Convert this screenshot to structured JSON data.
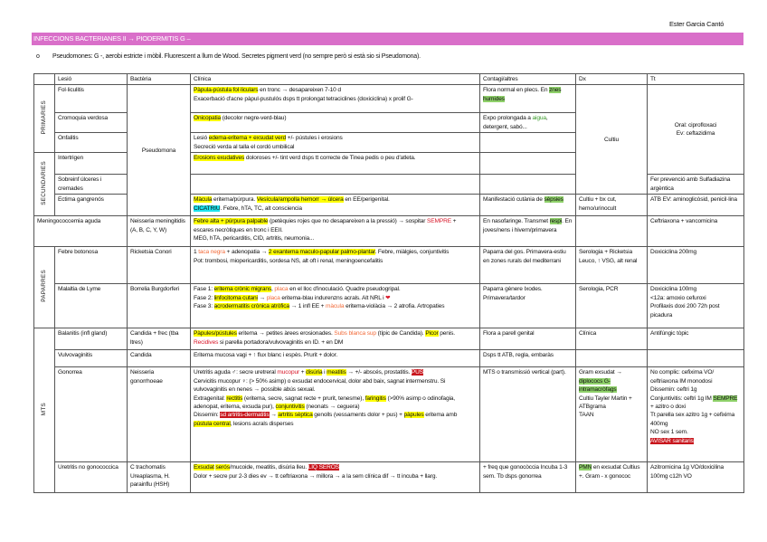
{
  "author": "Ester Garcia Cantó",
  "title": "INFECCIONS BACTERIANES II → PIODERMITIS G –",
  "bullet": {
    "marker": "o",
    "text": "Pseudomones: G -, aerobi estricte i mòbil. Fluorescent a llum de Wood. Secretes pigment verd (no sempre però si està sio si Pseudomona)."
  },
  "headers": [
    "",
    "Lesió",
    "Bactèria",
    "Clínica",
    "Contagi/altres",
    "Dx",
    "Tt"
  ],
  "groups": {
    "primaries": "PRIMARIES",
    "secundaries": "SECUNDARIES",
    "paparres": "PAPARRES",
    "mts": "MTS"
  },
  "rows": {
    "foliculitis": {
      "lesio": "Fol·liculitis",
      "clinica": [
        {
          "t": "Pàpula-pústula fol·liculars",
          "s": "y"
        },
        " en tronc → desapareixen 7-10 d",
        "\n",
        "Exacerbació d'acne pàpul-pustulós dsps tt prolongat tetraciclines (doxiciclina) x prolif G-"
      ],
      "contagi": [
        "Flora normal en plecs. En ",
        {
          "t": "znes humides",
          "s": "g"
        }
      ]
    },
    "cromoquia": {
      "lesio": "Cromoquia verdosa",
      "clinica": [
        {
          "t": "Onicopatia",
          "s": "y"
        },
        " (decolor negre-verd-blau)"
      ],
      "contagi": [
        "Expo prolongada a ",
        {
          "t": "aigua",
          "s": "gt"
        },
        ", detergent, sabó..."
      ]
    },
    "onfalitis": {
      "lesio": "Onfalitis",
      "clinica": [
        "Lesió ",
        {
          "t": "edema-eritema + exsudat verd",
          "s": "y"
        },
        " +/- pústules i erosions",
        "\n",
        "Secreció verda al talla el cordó umbilical"
      ]
    },
    "intertrigen": {
      "lesio": "Intertrigen",
      "clinica": [
        {
          "t": "Erosions exudatives",
          "s": "y"
        },
        " doloroses +/- tint verd dsps tt correcte de Tinea pedis o peu d'atleta."
      ]
    },
    "sobreinf": {
      "lesio": "Sobreinf úlceres i cremades",
      "tt": [
        "Fer prevenció amb Sulfadiazina argèntica"
      ]
    },
    "ectima": {
      "lesio": "Ectima gangrenós",
      "clinica": [
        {
          "t": "Màcula",
          "s": "y"
        },
        " eritema/púrpura. ",
        {
          "t": "Vesícula/ampolla hemorr → úlcera",
          "s": "y"
        },
        " en EE/perigenital.",
        "\n",
        {
          "t": "CICATRIU",
          "s": "c"
        },
        ". Febre, hTA, TC, alt consciencia"
      ],
      "contagi": [
        "Manifestació cutània de ",
        {
          "t": "sèpsies",
          "s": "g"
        }
      ],
      "dx": [
        "Cultiu + bx cut, hemo/urinocult"
      ],
      "tt": [
        "ATB EV: aminoglicòsid, penicil·lina"
      ]
    },
    "pseudomona": "Pseudomona",
    "cultiu": "Cultiu",
    "oral_tt": [
      "Oral: ciprofloxaci",
      "\n",
      "Ev: ceftazidima"
    ],
    "meningo": {
      "lesio": "Meningococcemia aguda",
      "bacteria": [
        "Neisseria meningitidis (A, B, C, Y, W)"
      ],
      "clinica": [
        {
          "t": "Febre alta + púrpura palpable",
          "s": "y"
        },
        " (petèquies rojes que no desapareixen a la pressió) → sospitar ",
        {
          "t": "SEMPRE",
          "s": "rt"
        },
        " + escares necròtiques en tronc i EEII.",
        "\n",
        "MEG, hTA, pericarditis, CID, artritis, neumonia..."
      ],
      "contagi": [
        "En nasofaringe. Transmet ",
        {
          "t": "respi",
          "s": "g"
        },
        ". En joves/nens i hivern/primavera"
      ],
      "tt": [
        "Ceftriaxona + vancomicina"
      ]
    },
    "botonosa": {
      "lesio": "Febre botonosa",
      "bacteria": [
        "Ricketsia Conori"
      ],
      "clinica": [
        "1 ",
        {
          "t": "taca negra",
          "s": "o"
        },
        " + adenopatia → ",
        {
          "t": "2 exantema maculo-papular palmo-plantar",
          "s": "y"
        },
        ". Febre, miàlgies, conjuntivitis",
        "\n",
        "Pot: trombosi, miopericarditis, sordesa NS, alt oft i renal, meningoencefalitis"
      ],
      "contagi": [
        "Paparra del gos. Primavera-estiu en zones rurals del mediterrani"
      ],
      "dx": [
        "Serologia + Ricketsia",
        "\n",
        "Leuco, ↑ VSG, alt renal"
      ],
      "tt": [
        "Doxiciclina 200mg"
      ]
    },
    "lyme": {
      "lesio": "Malaltia de Lyme",
      "bacteria": [
        "Borrelia Burgdorferi"
      ],
      "clinica": [
        "Fase 1: ",
        {
          "t": "eritema crònic migrans",
          "s": "y"
        },
        ", ",
        {
          "t": "placa",
          "s": "o"
        },
        " en el lloc d'inoculació. Quadre pseudogripal.",
        "\n",
        "Fase 2: ",
        {
          "t": "linfocitoma cutani",
          "s": "y"
        },
        " → ",
        {
          "t": "placa",
          "s": "o"
        },
        " eritema-blau indurenzns acrals. Alt NRL i ",
        {
          "t": "❤",
          "s": "rt"
        },
        "\n",
        "Fase 3: ",
        {
          "t": "acrodermatitis crònica atròfica",
          "s": "y"
        },
        " → 1 infl EE + ",
        {
          "t": "màcula",
          "s": "o"
        },
        " eritema-violàcia → 2 atrofia. Artropaties"
      ],
      "contagi": [
        "Paparra gènere Ixodes. Primavera/tardor"
      ],
      "dx": [
        "Serologia, PCR"
      ],
      "tt": [
        "Doxiciclina 100mg",
        "\n",
        "<12a: amoxio cefuroxi",
        "\n",
        "Profilaxis doxi 200 72h post picadura"
      ]
    },
    "balanitis": {
      "lesio": "Balanitis (infl gland)",
      "bacteria": [
        "Candida + frec (tba ltres)"
      ],
      "clinica": [
        {
          "t": "Pàpules/pústules",
          "s": "y"
        },
        " eritema → petites àrees erosionades. ",
        {
          "t": "Subs blanca sup",
          "s": "o"
        },
        " (típic de Candida). ",
        {
          "t": "Picor",
          "s": "y"
        },
        " penis. ",
        {
          "t": "Recidives",
          "s": "rt"
        },
        " si parella portadora/vulvovaginitis en ID. + en DM"
      ],
      "contagi": [
        "Flora a parell genital"
      ],
      "dx": [
        "Clínica"
      ],
      "tt": [
        "Antifúngic tòpic"
      ]
    },
    "vulvo": {
      "lesio": "Vulvovaginitis",
      "bacteria": [
        "Candida"
      ],
      "clinica": [
        "Eritema mucosa vagi + ↑ flux blanc i espès. Prurit + dolor."
      ],
      "contagi": [
        "Dsps tt ATB, regla, embaràs"
      ]
    },
    "gonorrea": {
      "lesio": "Gonorrea",
      "bacteria": [
        "Neisseria gonorrhoeae"
      ],
      "clinica": [
        "Uretritis aguda ♂: secre uretreral ",
        {
          "t": "mucopur",
          "s": "rt"
        },
        " + ",
        {
          "t": "disúria",
          "s": "y"
        },
        " i ",
        {
          "t": "meatitis",
          "s": "y"
        },
        " → +/- abscés, prostatitis. ",
        {
          "t": "PUS",
          "s": "r"
        },
        "\n",
        "Cervicitis mucopur ♀: (> 50% asimp) o exsudat endocervical, dolor abd baix, sagnat intermenstru. Si vulvovaginitis en nenes → possible abús sexual.",
        "\n",
        "Extragenital: ",
        {
          "t": "rectitis",
          "s": "y"
        },
        " (eritema, secre, sagnat recte + prurit, tenesme), ",
        {
          "t": "faringitis",
          "s": "y"
        },
        " (>90% asimp o odinofagia, adenopat, eritema, exsuda pur), ",
        {
          "t": "conjuntivitis",
          "s": "y"
        },
        " (neonats → ceguera)",
        "\n",
        "Dissemin: ",
        {
          "t": "sd artritis-dermatitis",
          "s": "r"
        },
        " → ",
        {
          "t": "artritis sèptica",
          "s": "y"
        },
        " genolls (vessaments dolor + pus) + ",
        {
          "t": "pàpules",
          "s": "y"
        },
        " eritema amb ",
        {
          "t": "pústula central",
          "s": "y"
        },
        ", lesions acrals disperses"
      ],
      "contagi": [
        "MTS o transmissió vertical (part)."
      ],
      "dx": [
        "Gram exsudat → ",
        {
          "t": "diplococs G- intramacròfags",
          "s": "g"
        },
        "\n",
        "Cultiu Tayler Martin + ATBgrama",
        "\n",
        "TAAN"
      ],
      "tt": [
        "No complic: cefixima VO/ ceftriaxona IM monodosi",
        "\n",
        "Dissemin: ceftri 1g",
        "\n",
        "Conjuntivitis: ceftri 1g IM ",
        {
          "t": "SEMPRE",
          "s": "g"
        },
        " + azitro o doxi",
        "\n",
        "Tt parella sex azitro 1g + cefixima 400mg",
        "\n",
        "NO sex 1 sem.",
        "\n",
        {
          "t": "AVISAR sanitaris",
          "s": "r"
        }
      ]
    },
    "uretritis": {
      "lesio": "Uretritis no gonococcica",
      "bacteria": [
        "C trachomatis Ureaplasma, H. parainflu (HSH)"
      ],
      "clinica": [
        {
          "t": "Exsudat",
          "s": "y"
        },
        " ",
        {
          "t": "serós",
          "s": "y"
        },
        "/mucoide, meatitis, disúria lleu. ",
        {
          "t": "LIQ SERÓS",
          "s": "r"
        },
        "\n",
        "Dolor + secre pur 2-3 dies ev → tt ceftriaxona → millora → a la sem clínica dif → tt incuba + llarg."
      ],
      "contagi": [
        "+ freq que gonocòccia Incuba 1-3 sem. Tb dsps gonorrea"
      ],
      "dx": [
        {
          "t": "PMN",
          "s": "g"
        },
        " en exsudat Cultius +. Gram - x gonococ"
      ],
      "tt": [
        "Azitromicina 1g VO/doxicilina 100mg c12h VO"
      ]
    }
  }
}
